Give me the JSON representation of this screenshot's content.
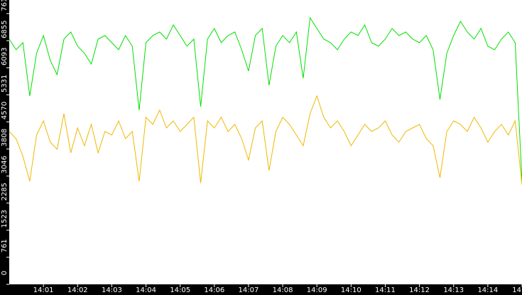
{
  "chart_data": {
    "type": "line",
    "xlim": [
      0,
      75
    ],
    "xticks": [
      {
        "value": 5,
        "label": "14:01"
      },
      {
        "value": 10,
        "label": "14:02"
      },
      {
        "value": 15,
        "label": "14:03"
      },
      {
        "value": 20,
        "label": "14:04"
      },
      {
        "value": 25,
        "label": "14:05"
      },
      {
        "value": 30,
        "label": "14:06"
      },
      {
        "value": 35,
        "label": "14:07"
      },
      {
        "value": 40,
        "label": "14:08"
      },
      {
        "value": 45,
        "label": "14:09"
      },
      {
        "value": 50,
        "label": "14:10"
      },
      {
        "value": 55,
        "label": "14:11"
      },
      {
        "value": 60,
        "label": "14:12"
      },
      {
        "value": 65,
        "label": "14:13"
      },
      {
        "value": 70,
        "label": "14:14"
      },
      {
        "value": 75,
        "label": "14"
      }
    ],
    "ylim": [
      0,
      8000
    ],
    "yticks": [
      0,
      761,
      1523,
      2285,
      3046,
      3808,
      4570,
      5331,
      6093,
      6855,
      7617
    ],
    "series": [
      {
        "color": "#00e000",
        "values": [
          6900,
          6600,
          6800,
          5300,
          6500,
          7000,
          6300,
          5900,
          6900,
          7100,
          6700,
          6500,
          6200,
          6900,
          7000,
          6800,
          6600,
          7000,
          6700,
          4900,
          6800,
          7000,
          7100,
          6900,
          7300,
          7000,
          6700,
          6900,
          5000,
          6900,
          7200,
          6800,
          7000,
          7100,
          6600,
          6000,
          7000,
          7200,
          5600,
          6700,
          7000,
          6800,
          7100,
          5800,
          7500,
          7200,
          6900,
          6800,
          6600,
          6900,
          7100,
          7000,
          7300,
          6800,
          6700,
          6900,
          7200,
          7000,
          7100,
          6900,
          6800,
          7000,
          6600,
          5200,
          6500,
          7000,
          7400,
          7100,
          6900,
          7200,
          6700,
          6600,
          6900,
          7100,
          6800,
          2900
        ]
      },
      {
        "color": "#f0b800",
        "values": [
          4300,
          4100,
          3600,
          2900,
          4200,
          4600,
          4000,
          3800,
          4800,
          3700,
          4400,
          3900,
          4500,
          3700,
          4300,
          4200,
          4600,
          4100,
          4300,
          2900,
          4700,
          4500,
          4900,
          4400,
          4600,
          4300,
          4500,
          4700,
          2850,
          4600,
          4400,
          4700,
          4300,
          4500,
          4100,
          3500,
          4400,
          4600,
          3200,
          4300,
          4700,
          4500,
          4200,
          3900,
          4800,
          5300,
          4700,
          4400,
          4600,
          4300,
          3900,
          4200,
          4500,
          4300,
          4400,
          4600,
          4200,
          4000,
          4300,
          4400,
          4500,
          4100,
          3900,
          3000,
          4300,
          4600,
          4500,
          4300,
          4700,
          4400,
          4000,
          4300,
          4500,
          4200,
          4600,
          2800
        ]
      }
    ]
  }
}
